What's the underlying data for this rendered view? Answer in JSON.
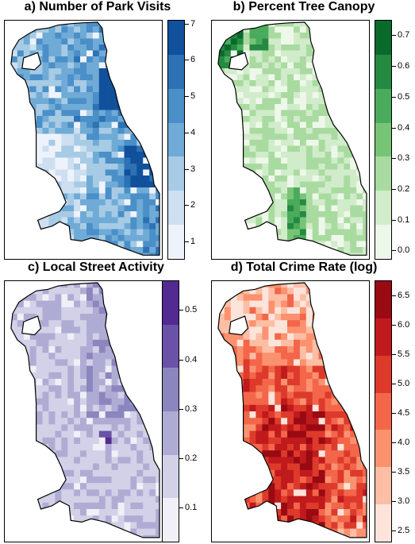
{
  "figure": {
    "panels": [
      {
        "key": "a",
        "title": "a) Number of Park Visits",
        "legend_ticks": [
          "1",
          "2",
          "3",
          "4",
          "5",
          "6",
          "7"
        ],
        "range": [
          0.5,
          7.1
        ],
        "colors": [
          "#eef3fb",
          "#cddff0",
          "#a7cbe5",
          "#6fabd6",
          "#4a8fc8",
          "#2c72b4",
          "#11509b"
        ]
      },
      {
        "key": "b",
        "title": "b) Percent Tree Canopy",
        "legend_ticks": [
          "0.0",
          "0.1",
          "0.2",
          "0.3",
          "0.4",
          "0.5",
          "0.6",
          "0.7"
        ],
        "range": [
          -0.03,
          0.75
        ],
        "colors": [
          "#eef8ea",
          "#d1ecca",
          "#a9dba0",
          "#78c477",
          "#4aab5d",
          "#258a41",
          "#0a6a2c"
        ]
      },
      {
        "key": "c",
        "title": "c) Local Street Activity",
        "legend_ticks": [
          "0.1",
          "0.2",
          "0.3",
          "0.4",
          "0.5"
        ],
        "range": [
          0.03,
          0.56
        ],
        "colors": [
          "#f1eff7",
          "#d2d1e8",
          "#afacd4",
          "#8c86bf",
          "#6a52a8",
          "#522a91"
        ]
      },
      {
        "key": "d",
        "title": "d) Total Crime Rate (log)",
        "legend_ticks": [
          "2.5",
          "3.0",
          "3.5",
          "4.0",
          "4.5",
          "5.0",
          "5.5",
          "6.0",
          "6.5"
        ],
        "range": [
          2.3,
          6.75
        ],
        "colors": [
          "#fde4da",
          "#fcbea5",
          "#fb926f",
          "#f3664a",
          "#dd3a2c",
          "#c01a1d",
          "#990a12"
        ]
      }
    ]
  }
}
